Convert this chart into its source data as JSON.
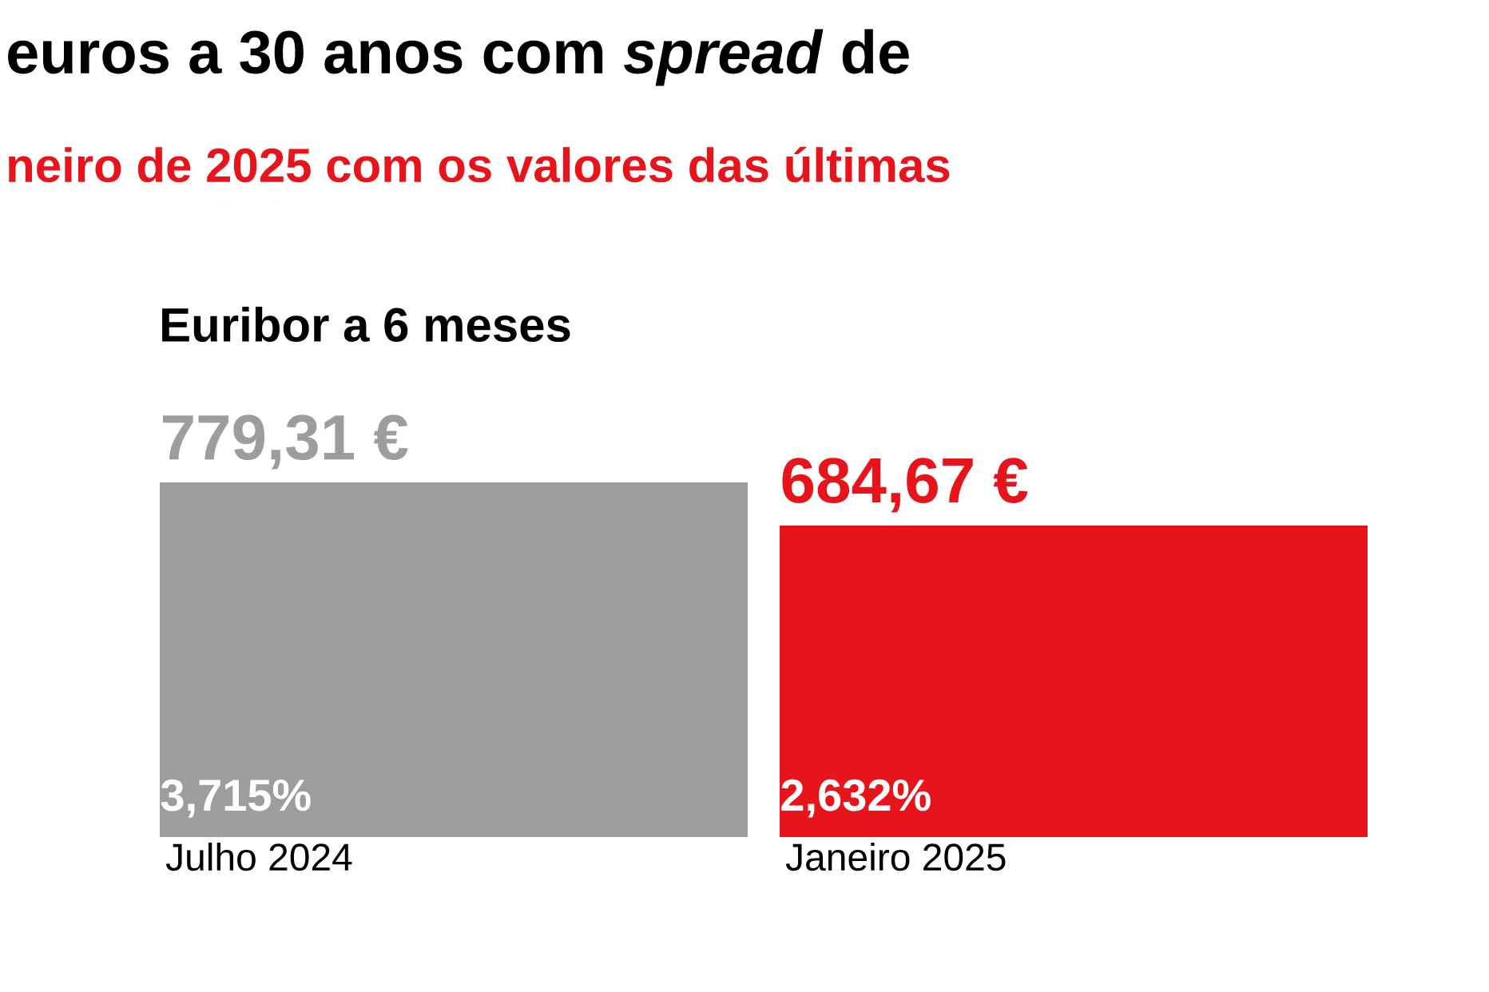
{
  "chart_data": {
    "type": "bar",
    "title": "euros a 30 anos com *spread* de",
    "subtitle": "neiro de 2025 com os valores das últimas",
    "categories": [
      "Julho 2024",
      "Janeiro 2025"
    ],
    "values": [
      779.31,
      684.67
    ],
    "colors": [
      "#9d9d9d",
      "#e8141c"
    ],
    "value_labels": [
      "779,31 €",
      "684,67 €"
    ],
    "annotations": [
      "Euribor a 6 meses",
      "3,715%",
      "2,632%"
    ]
  }
}
